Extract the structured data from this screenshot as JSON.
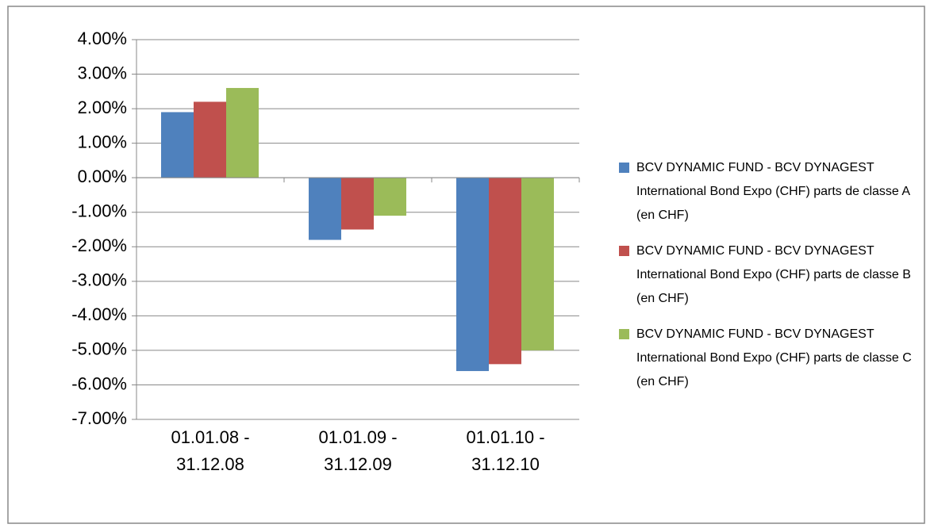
{
  "chart_data": {
    "type": "bar",
    "categories": [
      "01.01.08 - 31.12.08",
      "01.01.09 - 31.12.09",
      "01.01.10 - 31.12.10"
    ],
    "series": [
      {
        "name": "BCV DYNAMIC FUND - BCV DYNAGEST International Bond Expo (CHF) parts de classe A (en CHF)",
        "color": "#4f81bd",
        "values": [
          1.9,
          -1.8,
          -5.6
        ]
      },
      {
        "name": "BCV DYNAMIC FUND - BCV DYNAGEST International Bond Expo (CHF) parts de classe B (en CHF)",
        "color": "#c0504d",
        "values": [
          2.2,
          -1.5,
          -5.4
        ]
      },
      {
        "name": "BCV DYNAMIC FUND - BCV DYNAGEST International Bond Expo (CHF) parts de classe C (en CHF)",
        "color": "#9bbb59",
        "values": [
          2.6,
          -1.1,
          -5.0
        ]
      }
    ],
    "ylim": [
      -7,
      4
    ],
    "yticks": [
      {
        "value": -7,
        "label": "-7.00%"
      },
      {
        "value": -6,
        "label": "-6.00%"
      },
      {
        "value": -5,
        "label": "-5.00%"
      },
      {
        "value": -4,
        "label": "-4.00%"
      },
      {
        "value": -3,
        "label": "-3.00%"
      },
      {
        "value": -2,
        "label": "-2.00%"
      },
      {
        "value": -1,
        "label": "-1.00%"
      },
      {
        "value": 0,
        "label": "0.00%"
      },
      {
        "value": 1,
        "label": "1.00%"
      },
      {
        "value": 2,
        "label": "2.00%"
      },
      {
        "value": 3,
        "label": "3.00%"
      },
      {
        "value": 4,
        "label": "4.00%"
      }
    ],
    "grid": true,
    "legend": "right"
  }
}
